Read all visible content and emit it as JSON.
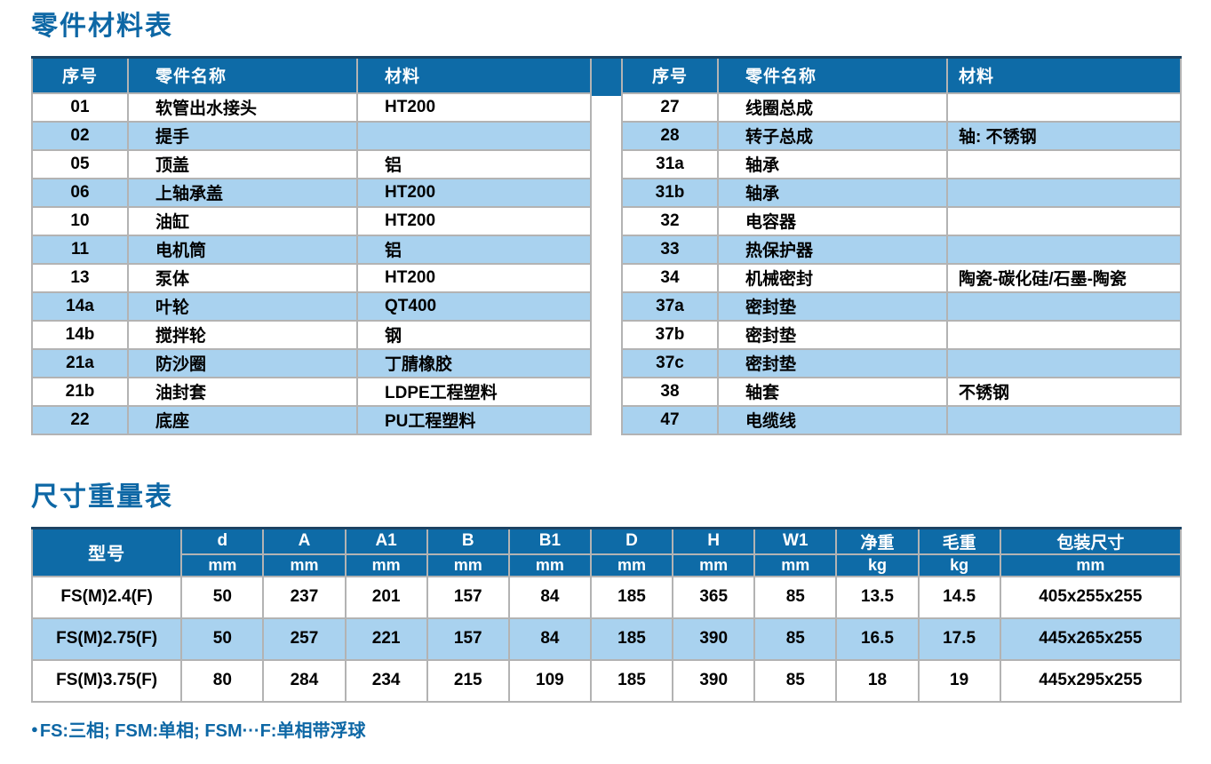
{
  "titles": {
    "parts": "零件材料表",
    "dimensions": "尺寸重量表"
  },
  "colors": {
    "header_blue": "#0e6ba7",
    "row_alt_blue": "#a9d2ef",
    "title_blue": "#0d67a5",
    "grid_gray": "#b3b3b3",
    "header_top_navy": "#1c4363"
  },
  "parts_table": {
    "headers": [
      "序号",
      "零件名称",
      "材料"
    ],
    "left_rows": [
      [
        "01",
        "软管出水接头",
        "HT200"
      ],
      [
        "02",
        "提手",
        ""
      ],
      [
        "05",
        "顶盖",
        "铝"
      ],
      [
        "06",
        "上轴承盖",
        "HT200"
      ],
      [
        "10",
        "油缸",
        "HT200"
      ],
      [
        "11",
        "电机筒",
        "铝"
      ],
      [
        "13",
        "泵体",
        "HT200"
      ],
      [
        "14a",
        "叶轮",
        "QT400"
      ],
      [
        "14b",
        "搅拌轮",
        "钢"
      ],
      [
        "21a",
        "防沙圈",
        "丁腈橡胶"
      ],
      [
        "21b",
        "油封套",
        "LDPE工程塑料"
      ],
      [
        "22",
        "底座",
        "PU工程塑料"
      ]
    ],
    "right_rows": [
      [
        "27",
        "线圈总成",
        ""
      ],
      [
        "28",
        "转子总成",
        "轴: 不锈钢"
      ],
      [
        "31a",
        "轴承",
        ""
      ],
      [
        "31b",
        "轴承",
        ""
      ],
      [
        "32",
        "电容器",
        ""
      ],
      [
        "33",
        "热保护器",
        ""
      ],
      [
        "34",
        "机械密封",
        "陶瓷-碳化硅/石墨-陶瓷"
      ],
      [
        "37a",
        "密封垫",
        ""
      ],
      [
        "37b",
        "密封垫",
        ""
      ],
      [
        "37c",
        "密封垫",
        ""
      ],
      [
        "38",
        "轴套",
        "不锈钢"
      ],
      [
        "47",
        "电缆线",
        ""
      ]
    ]
  },
  "dimension_table": {
    "model_header": "型号",
    "columns": [
      {
        "label": "d",
        "unit": "mm"
      },
      {
        "label": "A",
        "unit": "mm"
      },
      {
        "label": "A1",
        "unit": "mm"
      },
      {
        "label": "B",
        "unit": "mm"
      },
      {
        "label": "B1",
        "unit": "mm"
      },
      {
        "label": "D",
        "unit": "mm"
      },
      {
        "label": "H",
        "unit": "mm"
      },
      {
        "label": "W1",
        "unit": "mm"
      },
      {
        "label": "净重",
        "unit": "kg"
      },
      {
        "label": "毛重",
        "unit": "kg"
      },
      {
        "label": "包装尺寸",
        "unit": "mm"
      }
    ],
    "rows": [
      {
        "model": "FS(M)2.4(F)",
        "values": [
          "50",
          "237",
          "201",
          "157",
          "84",
          "185",
          "365",
          "85",
          "13.5",
          "14.5",
          "405x255x255"
        ]
      },
      {
        "model": "FS(M)2.75(F)",
        "values": [
          "50",
          "257",
          "221",
          "157",
          "84",
          "185",
          "390",
          "85",
          "16.5",
          "17.5",
          "445x265x255"
        ]
      },
      {
        "model": "FS(M)3.75(F)",
        "values": [
          "80",
          "284",
          "234",
          "215",
          "109",
          "185",
          "390",
          "85",
          "18",
          "19",
          "445x295x255"
        ]
      }
    ]
  },
  "footnote": {
    "bullet": "●",
    "text": "FS:三相; FSM:单相; FSM···F:单相带浮球"
  }
}
